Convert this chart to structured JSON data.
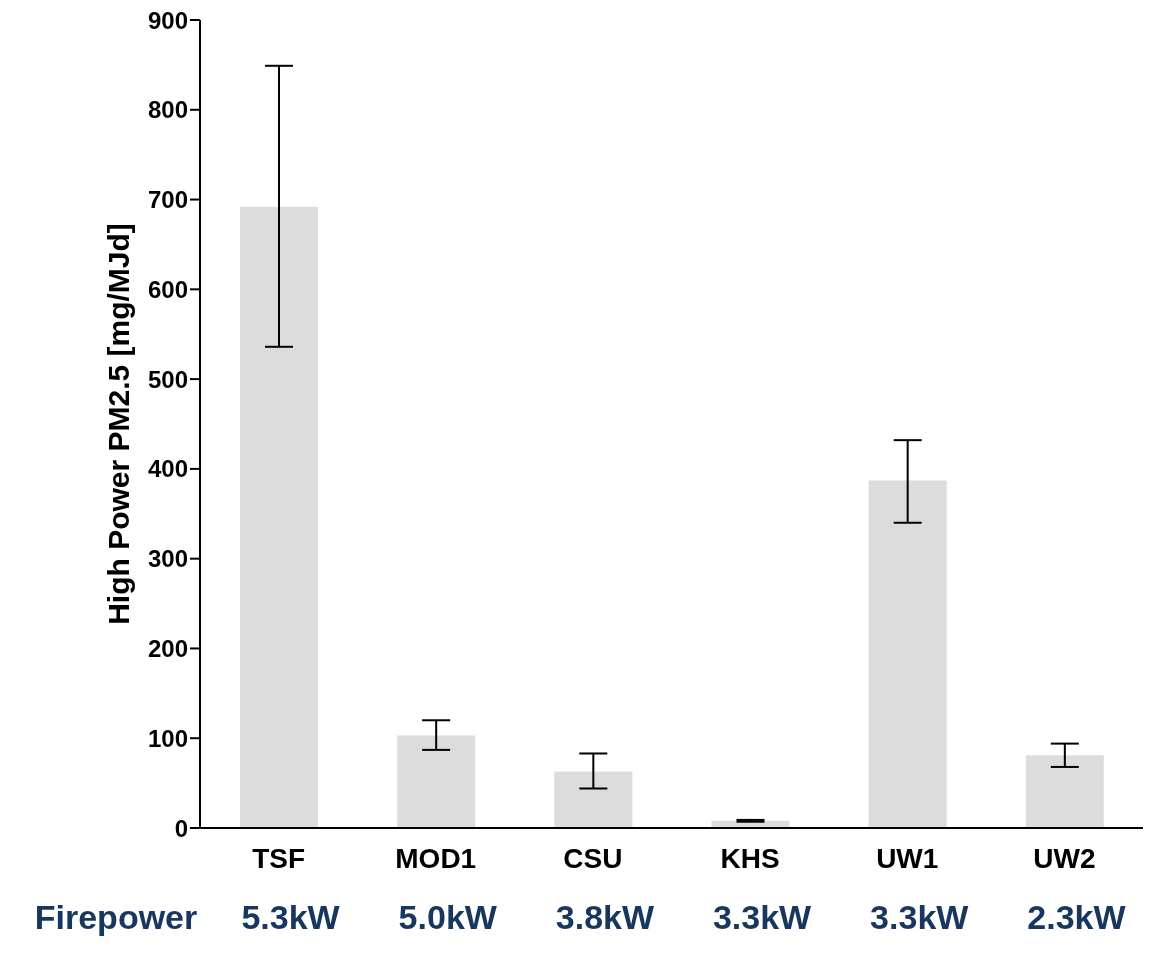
{
  "chart_data": {
    "type": "bar",
    "ylabel": "High Power PM2.5 [mg/MJd]",
    "categories": [
      "TSF",
      "MOD1",
      "CSU",
      "KHS",
      "UW1",
      "UW2"
    ],
    "values": [
      692,
      103,
      63,
      8,
      387,
      81
    ],
    "errors": [
      [
        536,
        849
      ],
      [
        87,
        120
      ],
      [
        44,
        83
      ],
      [
        7,
        9
      ],
      [
        340,
        432
      ],
      [
        68,
        94
      ]
    ],
    "color": "#dcdcdc",
    "ylim": [
      0,
      900
    ],
    "yticks": [
      0,
      100,
      200,
      300,
      400,
      500,
      600,
      700,
      800,
      900
    ],
    "grid": false,
    "legend": false,
    "annotations": [
      "Firepower",
      "5.3kW",
      "5.0kW",
      "3.8kW",
      "3.3kW",
      "3.3kW",
      "2.3kW"
    ]
  }
}
